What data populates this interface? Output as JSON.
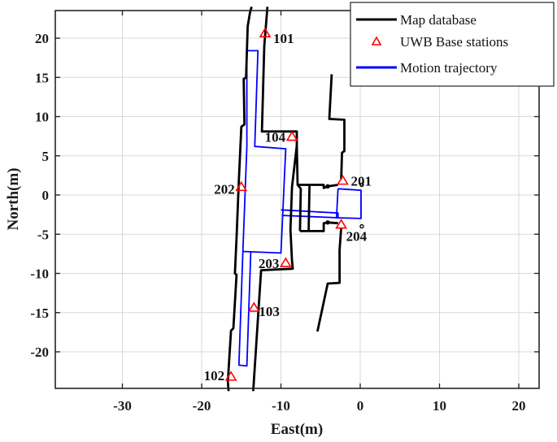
{
  "chart_data": {
    "type": "line",
    "title": "",
    "xlabel": "East(m)",
    "ylabel": "North(m)",
    "xlim": [
      -38,
      23
    ],
    "ylim": [
      -25,
      24
    ],
    "xticks": [
      -30,
      -20,
      -10,
      0,
      10,
      20
    ],
    "yticks": [
      20,
      15,
      10,
      5,
      0,
      -5,
      -10,
      -15,
      -20
    ],
    "xtick_labels": [
      "-30",
      "-20",
      "-10",
      "0",
      "10",
      "20"
    ],
    "ytick_labels": [
      "20",
      "15",
      "10",
      "5",
      "0",
      "-5",
      "-10",
      "-15",
      "-20"
    ],
    "grid": true,
    "legend_position": "upper right",
    "legend": [
      {
        "label": "Map database",
        "style": "line",
        "color": "#000000"
      },
      {
        "label": "UWB Base stations",
        "style": "triangle-marker",
        "color": "#ff0000"
      },
      {
        "label": "Motion trajectory",
        "style": "line",
        "color": "#0000ff"
      }
    ],
    "colors": {
      "map": "#000000",
      "stations": "#ff0000",
      "trajectory": "#0000ff",
      "grid": "#d9d9d9"
    },
    "base_stations": [
      {
        "id": "101",
        "x": -12.0,
        "y": 20.6
      },
      {
        "id": "102",
        "x": -16.3,
        "y": -23.2
      },
      {
        "id": "103",
        "x": -13.4,
        "y": -14.4
      },
      {
        "id": "104",
        "x": -8.6,
        "y": 7.4
      },
      {
        "id": "201",
        "x": -2.2,
        "y": 1.8
      },
      {
        "id": "202",
        "x": -15.0,
        "y": 1.0
      },
      {
        "id": "203",
        "x": -9.4,
        "y": -8.7
      },
      {
        "id": "204",
        "x": -2.4,
        "y": -3.8
      }
    ],
    "series": [
      {
        "name": "Motion trajectory",
        "color": "#0000ff",
        "paths": [
          [
            [
              -14.3,
              18.4
            ],
            [
              -12.9,
              18.4
            ],
            [
              -13.3,
              6.2
            ],
            [
              -9.4,
              5.9
            ],
            [
              -10.0,
              -7.4
            ],
            [
              -14.8,
              -7.2
            ],
            [
              -14.3,
              6.2
            ],
            [
              -14.3,
              18.4
            ]
          ],
          [
            [
              -14.8,
              -7.2
            ],
            [
              -15.3,
              -21.7
            ],
            [
              -14.3,
              -21.8
            ],
            [
              -13.8,
              -7.3
            ]
          ],
          [
            [
              -10.0,
              -1.9
            ],
            [
              -2.8,
              -2.3
            ],
            [
              -2.8,
              -2.9
            ],
            [
              -9.9,
              -2.6
            ]
          ],
          [
            [
              -2.8,
              0.8
            ],
            [
              0.1,
              0.6
            ],
            [
              0.1,
              -3.0
            ],
            [
              -3.0,
              -2.9
            ],
            [
              -2.8,
              0.8
            ]
          ]
        ]
      },
      {
        "name": "Map database",
        "color": "#000000",
        "paths": [
          [
            [
              -13.7,
              24.0
            ],
            [
              -13.9,
              23.3
            ],
            [
              -14.2,
              21.5
            ],
            [
              -14.4,
              15.0
            ],
            [
              -14.7,
              14.8
            ],
            [
              -14.6,
              9.0
            ],
            [
              -15.0,
              8.7
            ],
            [
              -15.3,
              2.0
            ],
            [
              -15.6,
              -5.5
            ],
            [
              -15.8,
              -10.0
            ],
            [
              -15.6,
              -10.2
            ],
            [
              -16.0,
              -17.0
            ],
            [
              -16.3,
              -17.3
            ],
            [
              -16.7,
              -23.8
            ],
            [
              -16.6,
              -25.0
            ]
          ],
          [
            [
              -11.7,
              24.0
            ],
            [
              -12.1,
              19.0
            ],
            [
              -12.4,
              8.1
            ],
            [
              -8.0,
              8.1
            ],
            [
              -8.0,
              6.3
            ],
            [
              -7.9,
              1.3
            ],
            [
              -7.5,
              0.8
            ],
            [
              -7.6,
              -4.6
            ]
          ],
          [
            [
              -8.0,
              6.3
            ],
            [
              -8.6,
              1.0
            ],
            [
              -8.8,
              -4.4
            ],
            [
              -8.6,
              -8.4
            ],
            [
              -8.5,
              -9.4
            ],
            [
              -12.5,
              -9.6
            ],
            [
              -13.5,
              -25.0
            ]
          ],
          [
            [
              -7.9,
              1.3
            ],
            [
              -4.6,
              1.3
            ],
            [
              -4.6,
              0.9
            ],
            [
              -4.1,
              1.1
            ],
            [
              -2.8,
              1.3
            ]
          ],
          [
            [
              -7.6,
              -4.6
            ],
            [
              -4.6,
              -4.6
            ],
            [
              -4.6,
              -3.6
            ],
            [
              -4.1,
              -3.5
            ],
            [
              -2.8,
              -3.6
            ]
          ],
          [
            [
              -6.4,
              1.2
            ],
            [
              -6.5,
              -4.5
            ]
          ],
          [
            [
              -3.6,
              15.4
            ],
            [
              -3.9,
              9.7
            ],
            [
              -2.0,
              9.6
            ],
            [
              -2.0,
              5.6
            ],
            [
              -2.3,
              5.4
            ],
            [
              -2.4,
              2.0
            ]
          ],
          [
            [
              -2.4,
              -4.2
            ],
            [
              -2.6,
              -7.0
            ],
            [
              -2.6,
              -11.2
            ],
            [
              -4.1,
              -11.3
            ],
            [
              -5.4,
              -17.4
            ]
          ]
        ]
      }
    ]
  }
}
